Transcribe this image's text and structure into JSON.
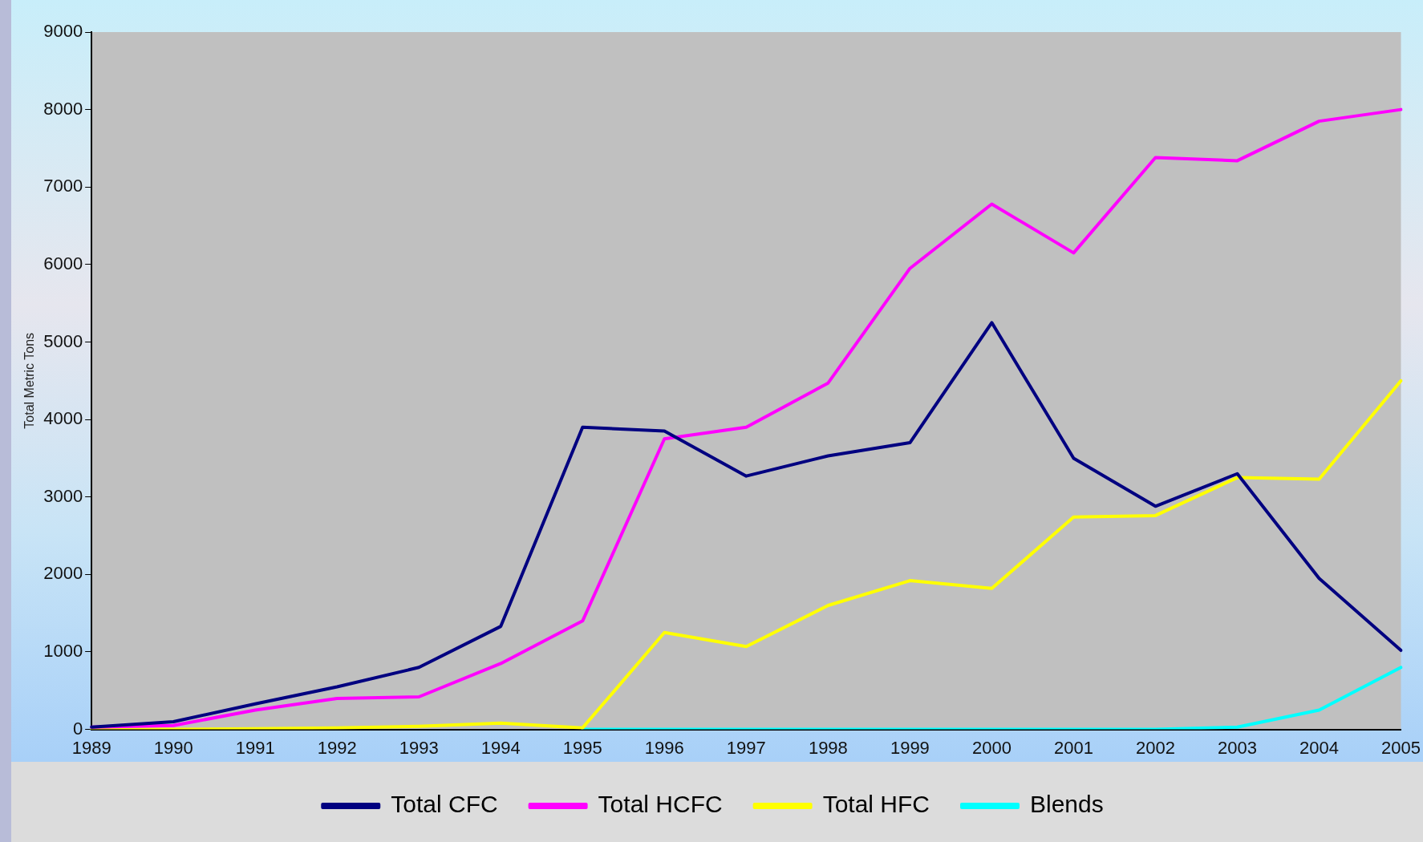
{
  "chart_data": {
    "type": "line",
    "ylabel": "Total Metric Tons",
    "categories": [
      "1989",
      "1990",
      "1991",
      "1992",
      "1993",
      "1994",
      "1995",
      "1996",
      "1997",
      "1998",
      "1999",
      "2000",
      "2001",
      "2002",
      "2003",
      "2004",
      "2005"
    ],
    "series": [
      {
        "name": "Total CFC",
        "color": "#000080",
        "values": [
          30,
          100,
          330,
          550,
          800,
          1330,
          3900,
          3850,
          3270,
          3530,
          3700,
          5250,
          3500,
          2880,
          3300,
          1950,
          1020
        ]
      },
      {
        "name": "Total HCFC",
        "color": "#ff00ff",
        "values": [
          30,
          50,
          250,
          400,
          420,
          850,
          1400,
          3750,
          3900,
          4470,
          5950,
          6780,
          6150,
          7380,
          7340,
          7850,
          8000
        ]
      },
      {
        "name": "Total HFC",
        "color": "#ffff00",
        "values": [
          0,
          0,
          10,
          20,
          40,
          80,
          20,
          1250,
          1070,
          1600,
          1920,
          1820,
          2740,
          2760,
          3250,
          3230,
          4500
        ]
      },
      {
        "name": "Blends",
        "color": "#00ffff",
        "values": [
          null,
          null,
          null,
          null,
          null,
          null,
          0,
          0,
          0,
          0,
          0,
          0,
          0,
          0,
          30,
          250,
          800
        ]
      }
    ],
    "ylim": [
      0,
      9000
    ],
    "yticks": [
      0,
      1000,
      2000,
      3000,
      4000,
      5000,
      6000,
      7000,
      8000,
      9000
    ],
    "grid": false,
    "legend": "bottom",
    "marker": "none",
    "line_style": "solid"
  }
}
